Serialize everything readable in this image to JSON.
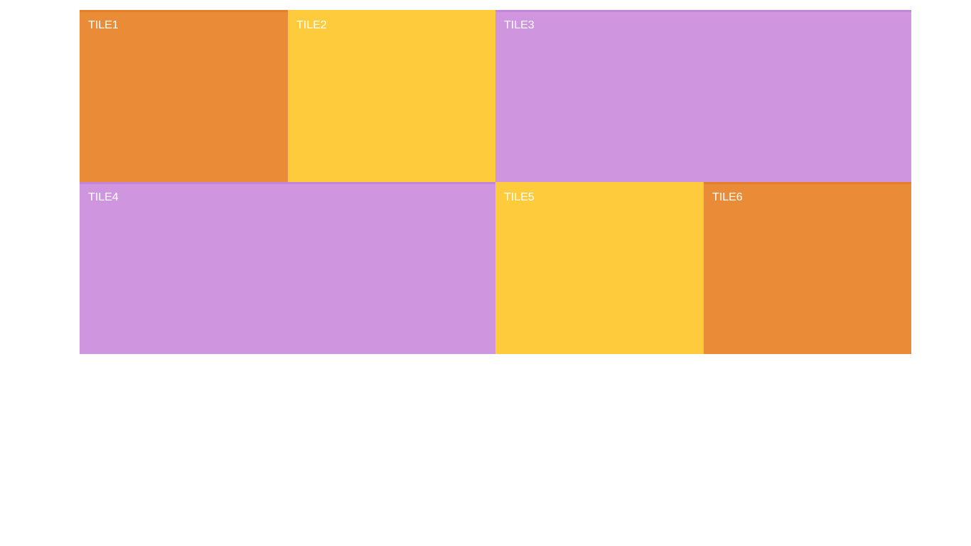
{
  "colors": {
    "orange": "#E98B37",
    "orange_edge": "#E57F2A",
    "yellow": "#FECB3D",
    "lavender": "#CF95DF",
    "lavender_edge": "#C585D9",
    "text": "#FFFFFF"
  },
  "tiles": [
    {
      "label": "TILE1",
      "color": "orange"
    },
    {
      "label": "TILE2",
      "color": "yellow"
    },
    {
      "label": "TILE3",
      "color": "lavender"
    },
    {
      "label": "TILE4",
      "color": "lavender"
    },
    {
      "label": "TILE5",
      "color": "yellow"
    },
    {
      "label": "TILE6",
      "color": "orange"
    }
  ]
}
